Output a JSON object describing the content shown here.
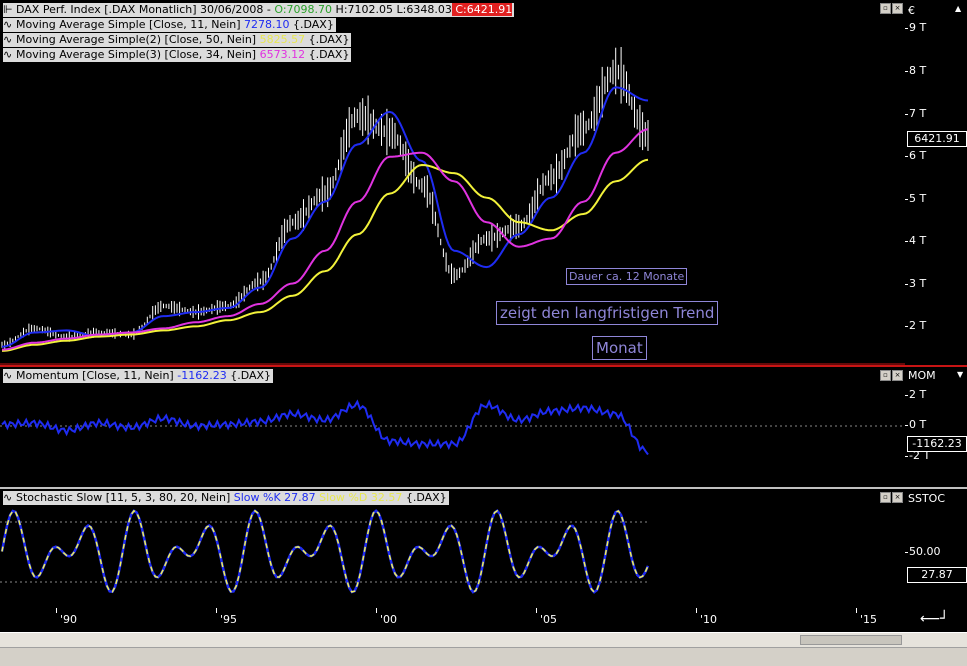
{
  "price_pane": {
    "legends": [
      {
        "prefix": "DAX Perf. Index [.DAX  Monatlich] 30/06/2008 - ",
        "o_label": "O:7098.70",
        "h_label": " H:7102.05",
        "l_label": " L:6348.03",
        "c_label": " C:6421.91"
      },
      {
        "text": "Moving Average Simple [Close, 11, Nein] ",
        "value": "7278.10",
        "suffix": " {.DAX}"
      },
      {
        "text": "Moving Average Simple(2) [Close, 50, Nein] ",
        "value": "5825.57",
        "suffix": " {.DAX}"
      },
      {
        "text": "Moving Average Simple(3) [Close, 34, Nein] ",
        "value": "6573.12",
        "suffix": " {.DAX}"
      }
    ],
    "axis_unit": "€",
    "axis_ticks": [
      "9 T",
      "8 T",
      "7 T",
      "6 T",
      "5 T",
      "4 T",
      "3 T",
      "2 T"
    ],
    "last_value": "6421.91",
    "annotations": {
      "duration": "Dauer ca. 12 Monate",
      "trend": "zeigt den langfristigen Trend",
      "period": "Monat"
    }
  },
  "momentum_pane": {
    "legend": "Momentum [Close, 11, Nein] ",
    "value": "-1162.23",
    "suffix": " {.DAX}",
    "axis_title": "MOM",
    "axis_ticks": [
      "2 T",
      "0 T",
      "-2 T"
    ],
    "last_value": "-1162.23"
  },
  "stoch_pane": {
    "legend": "Stochastic Slow [11, 5, 3, 80, 20, Nein] ",
    "k_label": "Slow %K 27.87",
    "d_label": " Slow %D 32.57",
    "suffix": " {.DAX}",
    "axis_title": "SSTOC",
    "axis_ticks": [
      "50.00"
    ],
    "last_value": "27.87"
  },
  "x_axis": {
    "labels": [
      "'90",
      "'95",
      "'00",
      "'05",
      "'10",
      "'15"
    ]
  },
  "colors": {
    "ma11": "#1f2cf2",
    "ma50": "#f2f23a",
    "ma34": "#e033e0",
    "momentum": "#1f2cf2",
    "stoch_k": "#1f2cf2",
    "stoch_d": "#f4f454",
    "open": "#3cc83c",
    "close": "#e02020"
  },
  "chart_data": {
    "type": "line",
    "x": [
      "1988",
      "1989",
      "1990",
      "1991",
      "1992",
      "1993",
      "1994",
      "1995",
      "1996",
      "1997",
      "1998",
      "1999",
      "2000",
      "2001",
      "2002",
      "2003",
      "2004",
      "2005",
      "2006",
      "2007",
      "2008"
    ],
    "series": [
      {
        "name": "DAX Perf. Index",
        "values": [
          1300,
          1700,
          1500,
          1600,
          1550,
          2250,
          2100,
          2250,
          2850,
          4300,
          5000,
          6900,
          6500,
          5200,
          3000,
          3900,
          4200,
          5400,
          6600,
          8000,
          6422
        ]
      },
      {
        "name": "Moving Average Simple",
        "values": [
          1250,
          1600,
          1650,
          1500,
          1600,
          2000,
          2100,
          2200,
          2700,
          3900,
          4800,
          6200,
          7000,
          5800,
          3600,
          3200,
          4000,
          4900,
          6000,
          7600,
          7278
        ]
      },
      {
        "name": "Moving Average Simple(2)",
        "values": [
          1150,
          1300,
          1400,
          1500,
          1550,
          1650,
          1750,
          1900,
          2100,
          2500,
          3100,
          4000,
          5000,
          5700,
          5500,
          4900,
          4300,
          4100,
          4500,
          5300,
          5826
        ]
      },
      {
        "name": "Moving Average Simple(3)",
        "values": [
          1180,
          1350,
          1450,
          1550,
          1600,
          1700,
          1850,
          2000,
          2300,
          2800,
          3600,
          4800,
          5900,
          6000,
          5300,
          4300,
          3700,
          3900,
          4800,
          6000,
          6573
        ]
      }
    ]
  }
}
